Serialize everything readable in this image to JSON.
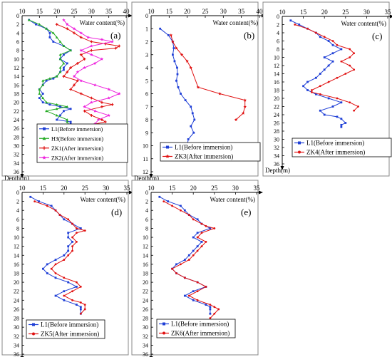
{
  "chart_data": [
    {
      "panel_label": "(a)",
      "type": "line",
      "xlabel": "Water content(%)",
      "ylabel": "Depth(m)",
      "xlim": [
        10,
        40
      ],
      "ylim": [
        36,
        0
      ],
      "xticks": [
        10,
        15,
        20,
        25,
        30,
        35,
        40
      ],
      "yticks": [
        0,
        2,
        4,
        6,
        8,
        10,
        12,
        14,
        16,
        18,
        20,
        22,
        24,
        26,
        28,
        30,
        32,
        34,
        36
      ],
      "legend_position": "bottom-right",
      "series": [
        {
          "name": "L1(Before immersion)",
          "color": "#1f3fd6",
          "marker": "square",
          "x": [
            12,
            14,
            17,
            18,
            18,
            19,
            22,
            24,
            22,
            21,
            23,
            22,
            22,
            21,
            20,
            19,
            17,
            16,
            15,
            16,
            15,
            16,
            18,
            21,
            24,
            22,
            21,
            20,
            24,
            24,
            24
          ],
          "y": [
            1,
            2,
            3,
            4,
            5,
            6,
            7,
            8,
            9,
            10,
            11,
            12,
            12.5,
            13,
            14,
            14.5,
            15,
            16,
            17,
            18,
            19,
            20,
            20.5,
            21,
            21.5,
            22,
            23,
            24,
            24.5,
            25,
            26
          ]
        },
        {
          "name": "H3(Before immersion)",
          "color": "#22aa22",
          "marker": "triangle",
          "x": [
            12,
            15,
            17,
            19,
            20,
            21,
            22,
            24,
            21,
            21,
            22,
            21,
            21,
            20,
            18,
            16,
            16,
            15,
            15,
            16,
            17,
            20,
            23,
            20,
            17,
            20,
            23,
            23,
            24
          ],
          "y": [
            1,
            2,
            3,
            4,
            5,
            6,
            7,
            8,
            9,
            10,
            11,
            12,
            13,
            14,
            14.5,
            15,
            16,
            17,
            18,
            19,
            20,
            20.5,
            21,
            21.5,
            22,
            23,
            24,
            24.5,
            26
          ]
        },
        {
          "name": "ZK1(After immersion)",
          "color": "#e01010",
          "marker": "plus",
          "x": [
            20,
            23,
            25,
            27,
            30,
            34,
            38,
            37,
            30,
            27,
            28,
            26,
            24,
            23,
            22,
            26,
            25,
            24,
            27,
            30,
            33,
            36,
            33,
            28,
            30,
            33,
            34,
            31,
            29,
            26
          ],
          "y": [
            2,
            3,
            4,
            5,
            6,
            6.5,
            7,
            7.5,
            8,
            9,
            10,
            11,
            12,
            13,
            14,
            15,
            16,
            17,
            18,
            19,
            20,
            20.5,
            21,
            22,
            23,
            24,
            24.5,
            25,
            26,
            27.5
          ]
        },
        {
          "name": "ZK2(After immersion)",
          "color": "#ee22dd",
          "marker": "star",
          "x": [
            22,
            23,
            25,
            27,
            29,
            33,
            36,
            30,
            27,
            30,
            33,
            31,
            28,
            26,
            25,
            27,
            31,
            35,
            38,
            35,
            30,
            28,
            31,
            35,
            32,
            31,
            29,
            27
          ],
          "y": [
            1,
            2,
            3,
            4,
            5,
            5.5,
            6,
            7,
            8,
            9,
            10,
            11,
            12,
            13,
            14,
            15,
            16,
            17,
            18,
            19,
            20,
            21,
            22,
            23,
            24,
            25,
            26,
            27
          ]
        }
      ]
    },
    {
      "panel_label": "(b)",
      "type": "line",
      "xlabel": "Water content(%)",
      "ylabel": "Depth(m)",
      "xlim": [
        10,
        40
      ],
      "ylim": [
        12,
        0
      ],
      "xticks": [
        10,
        15,
        20,
        25,
        30,
        35,
        40
      ],
      "yticks": [
        0,
        1,
        2,
        3,
        4,
        5,
        6,
        7,
        8,
        9,
        10,
        11,
        12
      ],
      "legend_position": "bottom-right",
      "series": [
        {
          "name": "L1(Before immersion)",
          "color": "#1f3fd6",
          "marker": "square",
          "x": [
            12.5,
            14.8,
            16,
            16.3,
            16,
            16.5,
            17.2,
            17.3,
            17,
            17.5,
            18.2,
            19.5,
            21,
            21.5,
            22,
            21,
            21.8,
            20.3,
            20,
            20.2
          ],
          "y": [
            1,
            1.5,
            2,
            2.5,
            3,
            3.5,
            4,
            4.5,
            5,
            5.5,
            6,
            6.5,
            7,
            7.5,
            8,
            8.5,
            9,
            9.5,
            10,
            10
          ]
        },
        {
          "name": "ZK3(After immersion)",
          "color": "#e01010",
          "marker": "star",
          "x": [
            15.5,
            16,
            17,
            18.5,
            20,
            21,
            23,
            29,
            36,
            36,
            35.5,
            33.5
          ],
          "y": [
            1.5,
            2,
            2.5,
            3,
            3.5,
            4,
            5.5,
            6,
            6.5,
            7,
            7.5,
            8
          ]
        }
      ]
    },
    {
      "panel_label": "(c)",
      "type": "line",
      "xlabel": "Water content(%)",
      "ylabel": "Depth(m)",
      "xlim": [
        10,
        35
      ],
      "ylim": [
        36,
        0
      ],
      "xticks": [
        10,
        15,
        20,
        25,
        30,
        35
      ],
      "yticks": [
        0,
        2,
        4,
        6,
        8,
        10,
        12,
        14,
        16,
        18,
        20,
        22,
        24,
        26,
        28,
        30,
        32,
        34,
        36
      ],
      "legend_position": "bottom-right",
      "series": [
        {
          "name": "L1(Before immersion)",
          "color": "#1f3fd6",
          "marker": "square",
          "x": [
            12,
            14,
            16,
            18,
            19,
            21,
            22,
            24,
            22,
            20,
            22,
            21,
            20,
            19,
            18,
            16,
            15,
            16,
            18,
            21,
            24,
            22,
            19,
            20,
            23,
            24,
            25,
            24,
            24
          ],
          "y": [
            1,
            2,
            3,
            4,
            5,
            6,
            7,
            8,
            9,
            10,
            11,
            12,
            13,
            14,
            15,
            16,
            17,
            18,
            19,
            20,
            21,
            22,
            23,
            24,
            24.5,
            25,
            26,
            26.5,
            27
          ]
        },
        {
          "name": "ZK4(After immersion)",
          "color": "#e01010",
          "marker": "circle",
          "x": [
            13,
            16,
            18,
            20,
            22,
            23,
            26,
            27,
            26,
            24,
            26,
            27,
            25,
            23,
            21,
            19,
            17,
            17,
            19,
            23,
            26,
            28,
            27
          ],
          "y": [
            2,
            3,
            4,
            5,
            6,
            7,
            8,
            9,
            10,
            11,
            12,
            13,
            14,
            15,
            16,
            17,
            18,
            18.5,
            19,
            20,
            21,
            22,
            23
          ]
        }
      ]
    },
    {
      "panel_label": "(d)",
      "type": "line",
      "xlabel": "Water content(%)",
      "ylabel": "Depth(m)",
      "xlim": [
        10,
        35
      ],
      "ylim": [
        36,
        0
      ],
      "xticks": [
        10,
        15,
        20,
        25,
        30,
        35
      ],
      "yticks": [
        0,
        2,
        4,
        6,
        8,
        10,
        12,
        14,
        16,
        18,
        20,
        22,
        24,
        26,
        28,
        30,
        32,
        34,
        36
      ],
      "legend_position": "bottom-right",
      "series": [
        {
          "name": "L1(Before immersion)",
          "color": "#1f3fd6",
          "marker": "square",
          "x": [
            12,
            14,
            17,
            18,
            19,
            20,
            22,
            24,
            21,
            21,
            22,
            21,
            21,
            20,
            18,
            16,
            15,
            16,
            18,
            21,
            23,
            20,
            18,
            20,
            23,
            24,
            24,
            24
          ],
          "y": [
            1,
            2,
            3,
            4,
            5,
            6,
            7,
            8,
            9,
            10,
            11,
            12,
            13,
            14,
            15,
            16,
            17,
            18,
            19,
            20,
            21,
            22,
            23,
            24,
            25,
            25.5,
            26,
            27
          ]
        },
        {
          "name": "ZK5(After immersion)",
          "color": "#e01010",
          "marker": "circle",
          "x": [
            13,
            16,
            18,
            19,
            21,
            22,
            23,
            25,
            23,
            22,
            23,
            22,
            22,
            21,
            20,
            18,
            17,
            18,
            20,
            23,
            24,
            22,
            20,
            22,
            24,
            25,
            25,
            24
          ],
          "y": [
            2,
            3,
            4,
            5,
            6,
            7,
            8,
            8.5,
            9,
            10,
            11,
            12,
            13,
            14,
            15,
            16,
            17,
            18,
            19,
            20,
            21,
            22,
            23,
            24,
            24.5,
            25,
            26,
            27
          ]
        }
      ]
    },
    {
      "panel_label": "(e)",
      "type": "line",
      "xlabel": "Water content(%)",
      "ylabel": "Depth(m)",
      "xlim": [
        10,
        35
      ],
      "ylim": [
        36,
        0
      ],
      "xticks": [
        10,
        15,
        20,
        25,
        30,
        35
      ],
      "yticks": [
        0,
        2,
        4,
        6,
        8,
        10,
        12,
        14,
        16,
        18,
        20,
        22,
        24,
        26,
        28,
        30,
        32,
        34,
        36
      ],
      "legend_position": "bottom-right",
      "series": [
        {
          "name": "L1(Before immersion)",
          "color": "#1f3fd6",
          "marker": "square",
          "x": [
            12,
            14,
            17,
            18,
            19,
            21,
            22,
            24,
            21,
            20,
            22,
            21,
            20,
            19,
            18,
            16,
            15,
            16,
            18,
            21,
            23,
            20,
            18,
            20,
            23,
            24,
            24,
            24
          ],
          "y": [
            1,
            2,
            3,
            4,
            5,
            6,
            7,
            8,
            9,
            10,
            11,
            12,
            13,
            14,
            15,
            16,
            17,
            18,
            19,
            20,
            21,
            22,
            23,
            24,
            25,
            25.5,
            26,
            27
          ]
        },
        {
          "name": "ZK6(After immersion)",
          "color": "#e01010",
          "marker": "circle",
          "x": [
            13,
            15,
            17,
            19,
            20,
            22,
            23,
            25,
            22,
            21,
            23,
            22,
            21,
            20,
            19,
            17,
            15,
            16,
            18,
            21,
            23,
            21,
            19,
            21,
            24,
            25,
            26,
            25,
            24
          ],
          "y": [
            2,
            3,
            4,
            5,
            6,
            7,
            7.5,
            8,
            9,
            10,
            11,
            12,
            13,
            14,
            15,
            16,
            17,
            18,
            19,
            20,
            21,
            22,
            23,
            24,
            25,
            25.5,
            26,
            27,
            28
          ]
        }
      ]
    }
  ]
}
